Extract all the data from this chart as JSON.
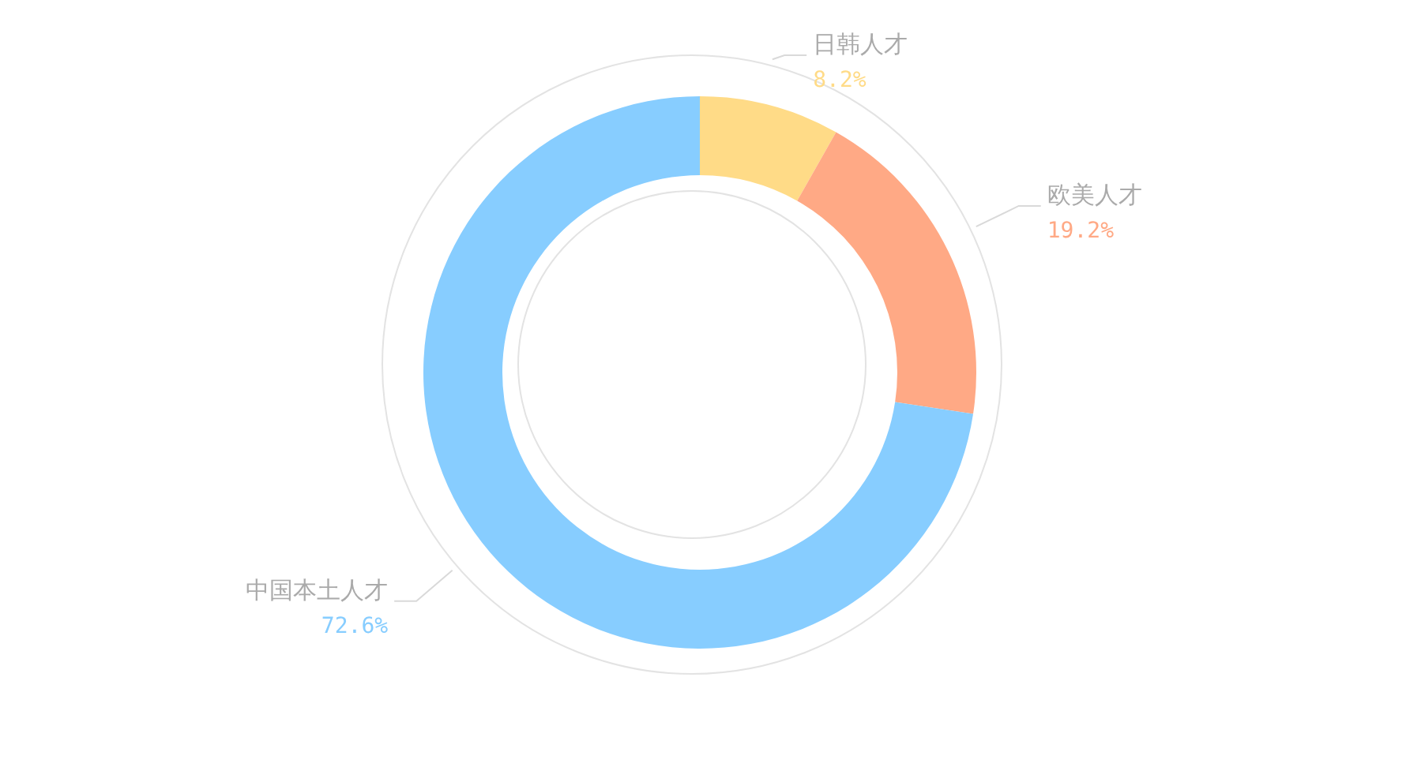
{
  "chart_data": {
    "type": "donut",
    "categories": [
      "日韩人才",
      "欧美人才",
      "中国本土人才"
    ],
    "values": [
      8.2,
      19.2,
      72.6
    ],
    "value_labels": [
      "8.2%",
      "19.2%",
      "72.6%"
    ],
    "colors": [
      "#ffdb87",
      "#ffa985",
      "#87cdff"
    ]
  }
}
